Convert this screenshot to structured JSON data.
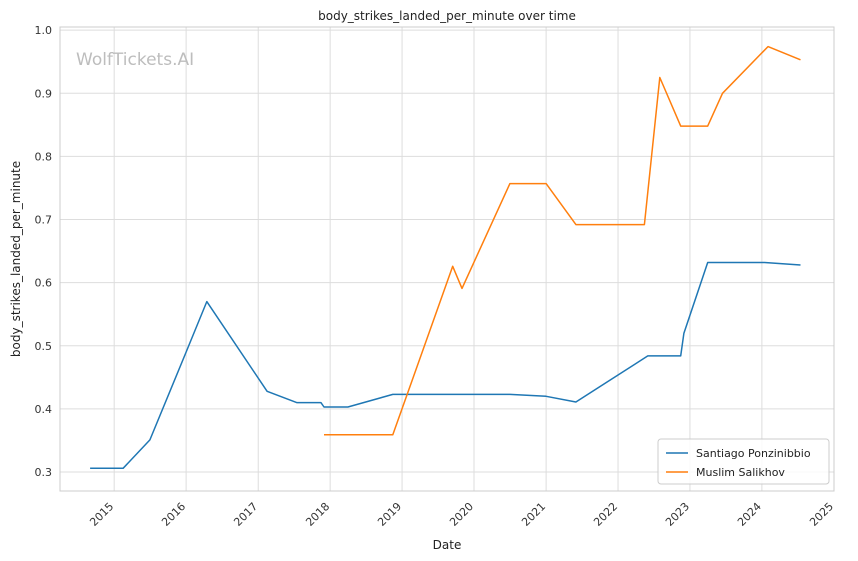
{
  "chart_data": {
    "type": "line",
    "title": "body_strikes_landed_per_minute over time",
    "xlabel": "Date",
    "ylabel": "body_strikes_landed_per_minute",
    "watermark": "WolfTickets.AI",
    "xlim": [
      "2014-04-01",
      "2025-01-01"
    ],
    "ylim": [
      0.27,
      1.005
    ],
    "x_ticks": [
      "2015",
      "2016",
      "2017",
      "2018",
      "2019",
      "2020",
      "2021",
      "2022",
      "2023",
      "2024",
      "2025"
    ],
    "y_ticks": [
      "0.3",
      "0.4",
      "0.5",
      "0.6",
      "0.7",
      "0.8",
      "0.9",
      "1.0"
    ],
    "grid": true,
    "legend_position": "bottom-right",
    "series": [
      {
        "name": "Santiago Ponzinibbio",
        "color": "#1f77b4",
        "points": [
          [
            "2014-09-01",
            0.306
          ],
          [
            "2015-02-15",
            0.306
          ],
          [
            "2015-07-01",
            0.351
          ],
          [
            "2016-01-01",
            0.49
          ],
          [
            "2016-04-15",
            0.57
          ],
          [
            "2017-02-15",
            0.428
          ],
          [
            "2017-07-15",
            0.41
          ],
          [
            "2017-11-15",
            0.41
          ],
          [
            "2017-12-01",
            0.403
          ],
          [
            "2018-04-01",
            0.403
          ],
          [
            "2018-11-15",
            0.423
          ],
          [
            "2020-07-01",
            0.423
          ],
          [
            "2021-01-01",
            0.42
          ],
          [
            "2021-06-01",
            0.411
          ],
          [
            "2022-06-01",
            0.484
          ],
          [
            "2022-11-15",
            0.484
          ],
          [
            "2022-12-01",
            0.52
          ],
          [
            "2023-04-01",
            0.632
          ],
          [
            "2024-01-15",
            0.632
          ],
          [
            "2024-07-15",
            0.628
          ]
        ]
      },
      {
        "name": "Muslim Salikhov",
        "color": "#ff7f0e",
        "points": [
          [
            "2017-12-01",
            0.359
          ],
          [
            "2018-11-15",
            0.359
          ],
          [
            "2019-09-15",
            0.626
          ],
          [
            "2019-11-01",
            0.591
          ],
          [
            "2020-07-01",
            0.757
          ],
          [
            "2021-01-01",
            0.757
          ],
          [
            "2021-06-01",
            0.692
          ],
          [
            "2022-05-15",
            0.692
          ],
          [
            "2022-08-01",
            0.925
          ],
          [
            "2022-11-15",
            0.848
          ],
          [
            "2023-04-01",
            0.848
          ],
          [
            "2023-06-15",
            0.9
          ],
          [
            "2024-02-01",
            0.974
          ],
          [
            "2024-07-15",
            0.953
          ]
        ]
      }
    ]
  }
}
